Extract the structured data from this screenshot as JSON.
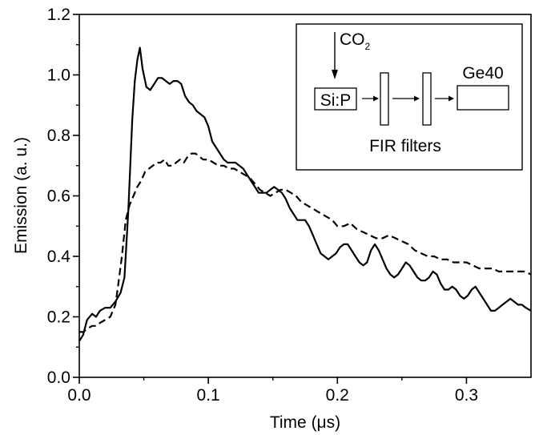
{
  "chart_data": {
    "type": "line",
    "xlabel": "Time (μs)",
    "ylabel": "Emission (a. u.)",
    "xlim": [
      0.0,
      0.35
    ],
    "ylim": [
      0.0,
      1.2
    ],
    "xticks": [
      {
        "value": 0.0,
        "label": "0.0"
      },
      {
        "value": 0.1,
        "label": "0.1"
      },
      {
        "value": 0.2,
        "label": "0.2"
      },
      {
        "value": 0.3,
        "label": "0.3"
      }
    ],
    "yticks": [
      {
        "value": 0.0,
        "label": "0.0"
      },
      {
        "value": 0.2,
        "label": "0.2"
      },
      {
        "value": 0.4,
        "label": "0.4"
      },
      {
        "value": 0.6,
        "label": "0.6"
      },
      {
        "value": 0.8,
        "label": "0.8"
      },
      {
        "value": 1.0,
        "label": "1.0"
      },
      {
        "value": 1.2,
        "label": "1.2"
      }
    ],
    "grid": false,
    "series": [
      {
        "style": "solid",
        "color": "#000000",
        "x": [
          0.0,
          0.003,
          0.006,
          0.01,
          0.013,
          0.016,
          0.02,
          0.024,
          0.028,
          0.032,
          0.035,
          0.038,
          0.041,
          0.043,
          0.045,
          0.047,
          0.049,
          0.052,
          0.055,
          0.058,
          0.061,
          0.064,
          0.067,
          0.07,
          0.073,
          0.076,
          0.079,
          0.082,
          0.085,
          0.088,
          0.091,
          0.094,
          0.097,
          0.1,
          0.103,
          0.106,
          0.109,
          0.112,
          0.115,
          0.118,
          0.121,
          0.124,
          0.127,
          0.13,
          0.133,
          0.136,
          0.139,
          0.142,
          0.145,
          0.148,
          0.151,
          0.154,
          0.157,
          0.16,
          0.163,
          0.166,
          0.169,
          0.172,
          0.175,
          0.178,
          0.181,
          0.184,
          0.187,
          0.19,
          0.193,
          0.196,
          0.199,
          0.202,
          0.205,
          0.208,
          0.211,
          0.214,
          0.217,
          0.22,
          0.223,
          0.226,
          0.229,
          0.232,
          0.235,
          0.238,
          0.241,
          0.244,
          0.247,
          0.25,
          0.253,
          0.256,
          0.259,
          0.262,
          0.265,
          0.268,
          0.271,
          0.274,
          0.277,
          0.28,
          0.283,
          0.286,
          0.289,
          0.292,
          0.295,
          0.298,
          0.301,
          0.304,
          0.307,
          0.31,
          0.313,
          0.316,
          0.319,
          0.322,
          0.325,
          0.328,
          0.331,
          0.334,
          0.337,
          0.34,
          0.343,
          0.346,
          0.35
        ],
        "y": [
          0.12,
          0.14,
          0.19,
          0.21,
          0.2,
          0.22,
          0.23,
          0.23,
          0.25,
          0.28,
          0.33,
          0.55,
          0.85,
          0.98,
          1.05,
          1.09,
          1.02,
          0.96,
          0.95,
          0.97,
          0.99,
          0.99,
          0.98,
          0.97,
          0.98,
          0.98,
          0.97,
          0.93,
          0.91,
          0.9,
          0.88,
          0.87,
          0.86,
          0.83,
          0.78,
          0.76,
          0.74,
          0.72,
          0.71,
          0.71,
          0.71,
          0.7,
          0.69,
          0.67,
          0.65,
          0.63,
          0.61,
          0.61,
          0.61,
          0.62,
          0.63,
          0.62,
          0.61,
          0.59,
          0.56,
          0.54,
          0.52,
          0.52,
          0.52,
          0.5,
          0.47,
          0.44,
          0.41,
          0.4,
          0.39,
          0.4,
          0.41,
          0.43,
          0.44,
          0.44,
          0.42,
          0.4,
          0.38,
          0.37,
          0.38,
          0.42,
          0.44,
          0.42,
          0.39,
          0.36,
          0.34,
          0.33,
          0.34,
          0.36,
          0.38,
          0.37,
          0.35,
          0.33,
          0.32,
          0.32,
          0.33,
          0.35,
          0.34,
          0.31,
          0.29,
          0.29,
          0.3,
          0.29,
          0.27,
          0.26,
          0.27,
          0.29,
          0.3,
          0.28,
          0.26,
          0.24,
          0.22,
          0.22,
          0.23,
          0.24,
          0.25,
          0.26,
          0.25,
          0.24,
          0.24,
          0.23,
          0.22
        ]
      },
      {
        "style": "dashed",
        "color": "#000000",
        "x": [
          0.0,
          0.003,
          0.006,
          0.01,
          0.013,
          0.016,
          0.02,
          0.024,
          0.028,
          0.03,
          0.033,
          0.036,
          0.039,
          0.042,
          0.045,
          0.048,
          0.051,
          0.054,
          0.057,
          0.06,
          0.063,
          0.066,
          0.069,
          0.072,
          0.075,
          0.078,
          0.081,
          0.084,
          0.087,
          0.09,
          0.093,
          0.096,
          0.1,
          0.104,
          0.108,
          0.112,
          0.116,
          0.12,
          0.124,
          0.128,
          0.132,
          0.136,
          0.14,
          0.144,
          0.148,
          0.152,
          0.156,
          0.16,
          0.164,
          0.168,
          0.172,
          0.176,
          0.18,
          0.184,
          0.188,
          0.192,
          0.196,
          0.2,
          0.205,
          0.21,
          0.215,
          0.22,
          0.225,
          0.23,
          0.235,
          0.24,
          0.245,
          0.25,
          0.255,
          0.26,
          0.265,
          0.27,
          0.275,
          0.28,
          0.285,
          0.29,
          0.295,
          0.3,
          0.305,
          0.31,
          0.315,
          0.32,
          0.325,
          0.33,
          0.335,
          0.34,
          0.345,
          0.35
        ],
        "y": [
          0.15,
          0.15,
          0.16,
          0.17,
          0.17,
          0.18,
          0.19,
          0.2,
          0.24,
          0.3,
          0.4,
          0.52,
          0.57,
          0.6,
          0.63,
          0.65,
          0.68,
          0.69,
          0.7,
          0.71,
          0.71,
          0.72,
          0.7,
          0.7,
          0.71,
          0.72,
          0.71,
          0.73,
          0.74,
          0.74,
          0.73,
          0.72,
          0.72,
          0.71,
          0.7,
          0.7,
          0.69,
          0.69,
          0.68,
          0.67,
          0.66,
          0.64,
          0.62,
          0.61,
          0.6,
          0.61,
          0.62,
          0.62,
          0.61,
          0.6,
          0.58,
          0.57,
          0.56,
          0.55,
          0.54,
          0.53,
          0.52,
          0.5,
          0.5,
          0.51,
          0.49,
          0.48,
          0.47,
          0.46,
          0.46,
          0.47,
          0.46,
          0.45,
          0.44,
          0.42,
          0.41,
          0.4,
          0.4,
          0.39,
          0.39,
          0.38,
          0.38,
          0.38,
          0.37,
          0.36,
          0.36,
          0.36,
          0.35,
          0.35,
          0.35,
          0.35,
          0.35,
          0.34
        ]
      }
    ],
    "inset": {
      "pump_label": "CO",
      "pump_subscript": "2",
      "source_label": "Si:P",
      "filters_label": "FIR filters",
      "detector_label": "Ge40"
    }
  }
}
